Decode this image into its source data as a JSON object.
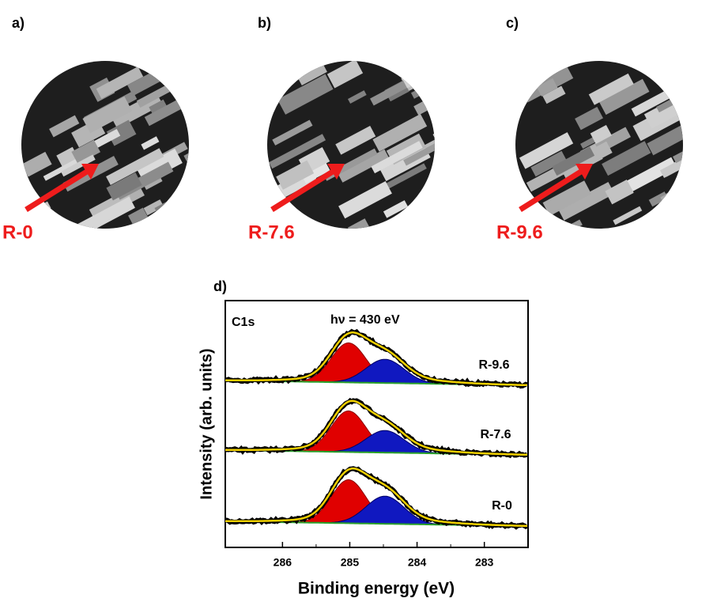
{
  "panels": [
    {
      "label": "a)",
      "sample": "R-0"
    },
    {
      "label": "b)",
      "sample": "R-7.6"
    },
    {
      "label": "c)",
      "sample": "R-9.6"
    }
  ],
  "chart_data": {
    "type": "line",
    "panel_label": "d)",
    "title": "C1s",
    "annotation": "hν = 430 eV",
    "ylabel": "Intensity (arb. units)",
    "xlabel": "Binding energy (eV)",
    "xlim": [
      286.85,
      282.35
    ],
    "xticks": [
      286,
      285,
      284,
      283
    ],
    "curve_labels": [
      "R-9.6",
      "R-7.6",
      "R-0"
    ]
  }
}
